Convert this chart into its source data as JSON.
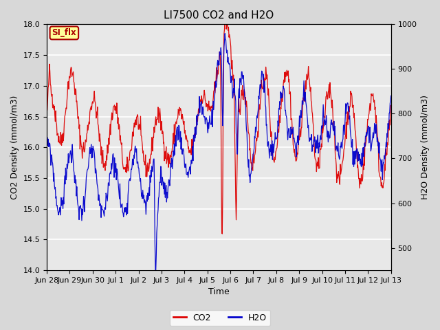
{
  "title": "LI7500 CO2 and H2O",
  "xlabel": "Time",
  "ylabel_left": "CO2 Density (mmol/m3)",
  "ylabel_right": "H2O Density (mmol/m3)",
  "ylim_left": [
    14.0,
    18.0
  ],
  "ylim_right": [
    450,
    1000
  ],
  "xtick_labels": [
    "Jun 28",
    "Jun 29",
    "Jun 30",
    "Jul 1",
    "Jul 2",
    "Jul 3",
    "Jul 4",
    "Jul 5",
    "Jul 6",
    "Jul 7",
    "Jul 8",
    "Jul 9",
    "Jul 10",
    "Jul 11",
    "Jul 12",
    "Jul 13"
  ],
  "co2_color": "#dd0000",
  "h2o_color": "#0000cc",
  "legend_label_co2": "CO2",
  "legend_label_h2o": "H2O",
  "annotation_text": "SI_flx",
  "annotation_bg": "#ffff99",
  "annotation_border": "#aa0000",
  "background_color": "#d8d8d8",
  "plot_bg_color": "#e8e8e8",
  "grid_color": "#ffffff",
  "title_fontsize": 11,
  "axis_fontsize": 9,
  "tick_fontsize": 8,
  "linewidth": 0.9
}
